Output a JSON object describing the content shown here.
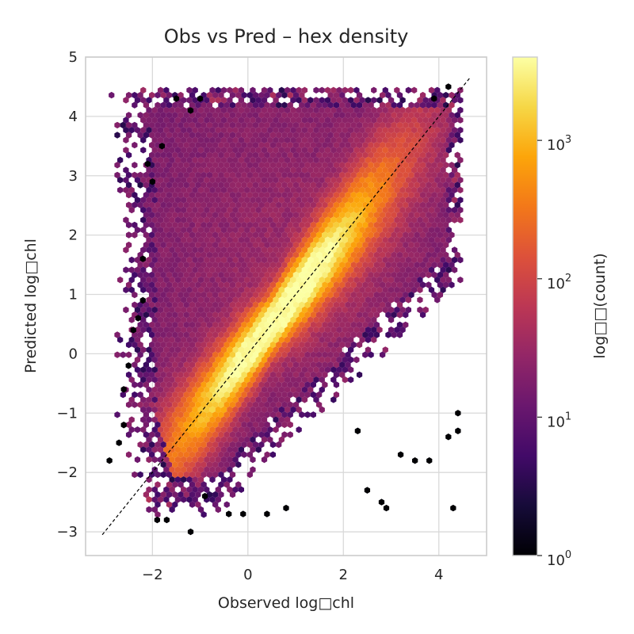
{
  "chart_data": {
    "type": "heatmap",
    "subtype": "hexbin",
    "title": "Obs vs Pred – hex density",
    "xlabel": "Observed log□chl",
    "ylabel": "Predicted log□chl",
    "xlim": [
      -3.4,
      5.0
    ],
    "ylim": [
      -3.4,
      5.0
    ],
    "xticks": [
      -2,
      0,
      2,
      4
    ],
    "xtick_labels": [
      "−2",
      "0",
      "2",
      "4"
    ],
    "yticks": [
      -3,
      -2,
      -1,
      0,
      1,
      2,
      3,
      4,
      5
    ],
    "ytick_labels": [
      "−3",
      "−2",
      "−1",
      "0",
      "1",
      "2",
      "3",
      "4",
      "5"
    ],
    "grid": true,
    "colormap": "inferno",
    "colorbar": {
      "label": "log□□(count)",
      "scale": "log",
      "range": [
        1,
        4000
      ],
      "ticks": [
        1,
        10,
        100,
        1000
      ],
      "tick_labels": [
        {
          "base": "10",
          "exp": "0"
        },
        {
          "base": "10",
          "exp": "1"
        },
        {
          "base": "10",
          "exp": "2"
        },
        {
          "base": "10",
          "exp": "3"
        }
      ]
    },
    "reference_line": {
      "style": "dashed",
      "color": "#000000",
      "from": [
        -3.05,
        -3.05
      ],
      "to": [
        4.65,
        4.65
      ]
    },
    "density_model": {
      "observed_range": [
        -2.3,
        4.5
      ],
      "predicted_range": [
        -2.4,
        4.5
      ],
      "peak_counts": 4000,
      "ridge": "predicted ≈ observed",
      "notes": "dense band along 1:1 line, brightest near (0.5, 0.5); saturation near predicted 4.5 and observed 4.5"
    },
    "outliers": [
      [
        -2.9,
        -1.8
      ],
      [
        -2.7,
        -1.5
      ],
      [
        -2.6,
        -0.6
      ],
      [
        -2.5,
        -0.2
      ],
      [
        -2.6,
        -1.2
      ],
      [
        -2.2,
        1.6
      ],
      [
        -2.0,
        2.9
      ],
      [
        -2.1,
        3.2
      ],
      [
        -1.8,
        3.5
      ],
      [
        -1.5,
        4.3
      ],
      [
        -1.2,
        4.1
      ],
      [
        -1.0,
        4.3
      ],
      [
        -2.3,
        0.6
      ],
      [
        -2.4,
        0.4
      ],
      [
        -2.2,
        0.9
      ],
      [
        -1.9,
        -2.8
      ],
      [
        -1.7,
        -2.8
      ],
      [
        -1.2,
        -3.0
      ],
      [
        -0.4,
        -2.7
      ],
      [
        -0.1,
        -2.7
      ],
      [
        0.4,
        -2.7
      ],
      [
        0.8,
        -2.6
      ],
      [
        2.5,
        -2.3
      ],
      [
        2.8,
        -2.5
      ],
      [
        2.9,
        -2.6
      ],
      [
        4.3,
        -2.6
      ],
      [
        3.5,
        -1.8
      ],
      [
        3.8,
        -1.8
      ],
      [
        4.4,
        -1.3
      ],
      [
        4.4,
        -1.0
      ],
      [
        4.2,
        -1.4
      ],
      [
        3.2,
        -1.7
      ],
      [
        2.3,
        -1.3
      ],
      [
        3.9,
        4.3
      ],
      [
        4.2,
        4.5
      ],
      [
        -0.9,
        -2.4
      ]
    ]
  }
}
